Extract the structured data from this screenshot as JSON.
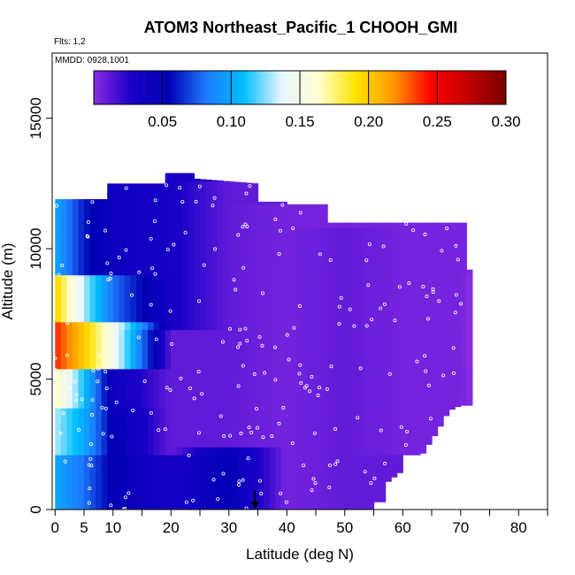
{
  "chart_data": {
    "type": "heatmap",
    "title": "ATOM3 Northeast_Pacific_1 CHOOH_GMI",
    "flights_label": "Flts: 1,2",
    "dates_label": "MMDD: 0928,1001",
    "xlabel": "Latitude (deg N)",
    "ylabel": "Altitude (m)",
    "xlim": [
      -0.5,
      85
    ],
    "ylim": [
      0,
      17500
    ],
    "x_ticks": [
      0,
      5,
      10,
      20,
      30,
      40,
      50,
      60,
      70,
      80
    ],
    "y_ticks": [
      0,
      5000,
      10000,
      15000
    ],
    "y_tick_labels": [
      "0",
      "5000",
      "10000",
      "15000"
    ],
    "colorbar": {
      "min": 0.0,
      "max": 0.3,
      "ticks": [
        0.05,
        0.1,
        0.15,
        0.2,
        0.25,
        0.3
      ],
      "tick_labels": [
        "0.05",
        "0.10",
        "0.15",
        "0.20",
        "0.25",
        "0.30"
      ],
      "stops": [
        "#8a2be2",
        "#1a00c8",
        "#0000b4",
        "#1e7aff",
        "#00bfff",
        "#e6f6ff",
        "#ffffd0",
        "#ffe300",
        "#ff9800",
        "#ff0000",
        "#c00000",
        "#7a0000"
      ]
    },
    "value_columns": [
      {
        "lat": 0,
        "values": [
          {
            "alt": [
              0,
              2000
            ],
            "v": 0.1
          },
          {
            "alt": [
              2000,
              4000
            ],
            "v": 0.13
          },
          {
            "alt": [
              4000,
              5500
            ],
            "v": 0.17
          },
          {
            "alt": [
              5500,
              7300
            ],
            "v": 0.24
          },
          {
            "alt": [
              7300,
              9000
            ],
            "v": 0.2
          },
          {
            "alt": [
              9000,
              11900
            ],
            "v": 0.1
          }
        ]
      },
      {
        "lat": 5,
        "values": [
          {
            "alt": [
              0,
              2000
            ],
            "v": 0.08
          },
          {
            "alt": [
              2000,
              4000
            ],
            "v": 0.1
          },
          {
            "alt": [
              4000,
              5500
            ],
            "v": 0.11
          },
          {
            "alt": [
              5500,
              7300
            ],
            "v": 0.2
          },
          {
            "alt": [
              7300,
              9000
            ],
            "v": 0.13
          },
          {
            "alt": [
              9000,
              11900
            ],
            "v": 0.06
          }
        ]
      },
      {
        "lat": 10,
        "values": [
          {
            "alt": [
              0,
              2000
            ],
            "v": 0.05
          },
          {
            "alt": [
              2000,
              4000
            ],
            "v": 0.05
          },
          {
            "alt": [
              4000,
              5500
            ],
            "v": 0.04
          },
          {
            "alt": [
              5500,
              7300
            ],
            "v": 0.15
          },
          {
            "alt": [
              7300,
              9000
            ],
            "v": 0.08
          },
          {
            "alt": [
              9000,
              12500
            ],
            "v": 0.04
          }
        ]
      },
      {
        "lat": 20,
        "values": [
          {
            "alt": [
              0,
              2000
            ],
            "v": 0.03
          },
          {
            "alt": [
              2000,
              7000
            ],
            "v": 0.01
          },
          {
            "alt": [
              7000,
              13000
            ],
            "v": 0.03
          }
        ]
      },
      {
        "lat": 30,
        "values": [
          {
            "alt": [
              0,
              2400
            ],
            "v": 0.05
          },
          {
            "alt": [
              2400,
              12500
            ],
            "v": 0.01
          }
        ]
      },
      {
        "lat": 40,
        "values": [
          {
            "alt": [
              0,
              11800
            ],
            "v": 0.005
          }
        ]
      },
      {
        "lat": 50,
        "values": [
          {
            "alt": [
              0,
              10900
            ],
            "v": 0.01
          }
        ]
      },
      {
        "lat": 60,
        "values": [
          {
            "alt": [
              2000,
              11000
            ],
            "v": 0.005
          }
        ]
      },
      {
        "lat": 70,
        "values": [
          {
            "alt": [
              4000,
              11000
            ],
            "v": 0.005
          }
        ]
      }
    ],
    "marker": {
      "type": "arrow",
      "lat": 34.5,
      "alt": 0
    }
  }
}
